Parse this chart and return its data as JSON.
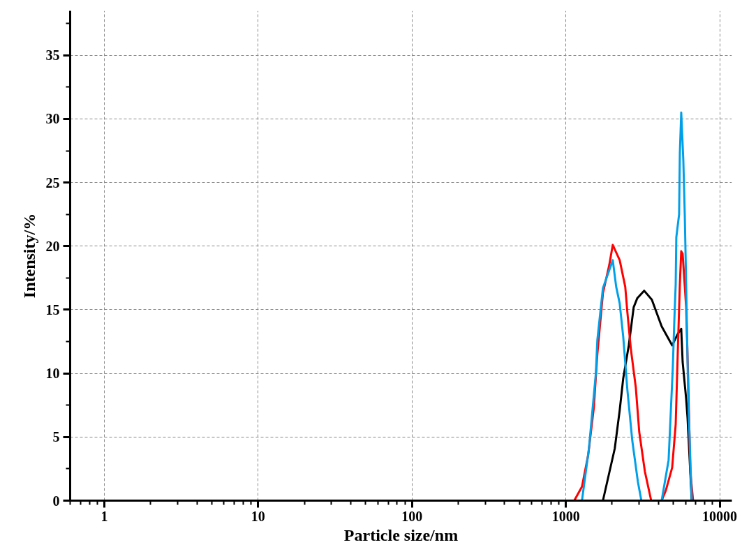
{
  "chart_data": {
    "type": "line",
    "xlabel": "Particle size/nm",
    "ylabel": "Intensity/%",
    "log": "x",
    "xlim": [
      0.6,
      12000
    ],
    "xticks": [
      1,
      10,
      100,
      1000,
      10000
    ],
    "ylim": [
      0,
      38.5
    ],
    "yticks": [
      0,
      5,
      10,
      15,
      20,
      25,
      30,
      35
    ],
    "grid": true,
    "marker": "none",
    "line_style": "solid",
    "series": [
      {
        "color": "#000000",
        "x": [
          0.6,
          1742,
          2080,
          2239,
          2360,
          2565,
          2760,
          2910,
          3228,
          3622,
          4195,
          4910,
          5335,
          5623,
          5743,
          6053,
          6180,
          6380,
          6580,
          10000
        ],
        "values": [
          0,
          0,
          4.1,
          7.1,
          9.6,
          12.2,
          15.2,
          15.9,
          16.5,
          15.8,
          13.7,
          12.2,
          13.1,
          13.5,
          10.9,
          8.0,
          6.5,
          3.2,
          0,
          0
        ]
      },
      {
        "color": "#ff0000",
        "x": [
          10,
          1134,
          1273,
          1398,
          1520,
          1602,
          1742,
          1914,
          2018,
          2239,
          2433,
          2512,
          2647,
          2849,
          3000,
          3263,
          3587,
          4195,
          4467,
          4910,
          5176,
          5335,
          5508,
          5623,
          5743,
          6053,
          6240,
          6441,
          6714,
          10000
        ],
        "values": [
          0,
          0,
          1.1,
          3.6,
          7.3,
          11.5,
          16.3,
          18.5,
          20.1,
          18.9,
          16.8,
          14.8,
          11.9,
          8.9,
          5.4,
          2.3,
          0,
          0,
          0.8,
          2.6,
          6.0,
          11.5,
          17.0,
          19.6,
          19.4,
          15.2,
          9.6,
          2.3,
          0,
          0
        ]
      },
      {
        "color": "#00a0e9",
        "x": [
          1273,
          1413,
          1567,
          1602,
          1742,
          2018,
          2125,
          2239,
          2360,
          2512,
          2704,
          2938,
          3097,
          4195,
          4656,
          4955,
          5070,
          5176,
          5224,
          5447,
          5508,
          5623,
          5804,
          5929,
          6053,
          6240,
          6580,
          10000
        ],
        "values": [
          0,
          4.1,
          10.0,
          12.6,
          16.7,
          18.9,
          16.8,
          15.5,
          12.9,
          8.7,
          4.7,
          1.5,
          0,
          0,
          3.2,
          10.4,
          14.1,
          17.0,
          20.7,
          22.5,
          27.3,
          30.5,
          26.7,
          22.5,
          17.0,
          8.2,
          0,
          0
        ]
      }
    ]
  }
}
